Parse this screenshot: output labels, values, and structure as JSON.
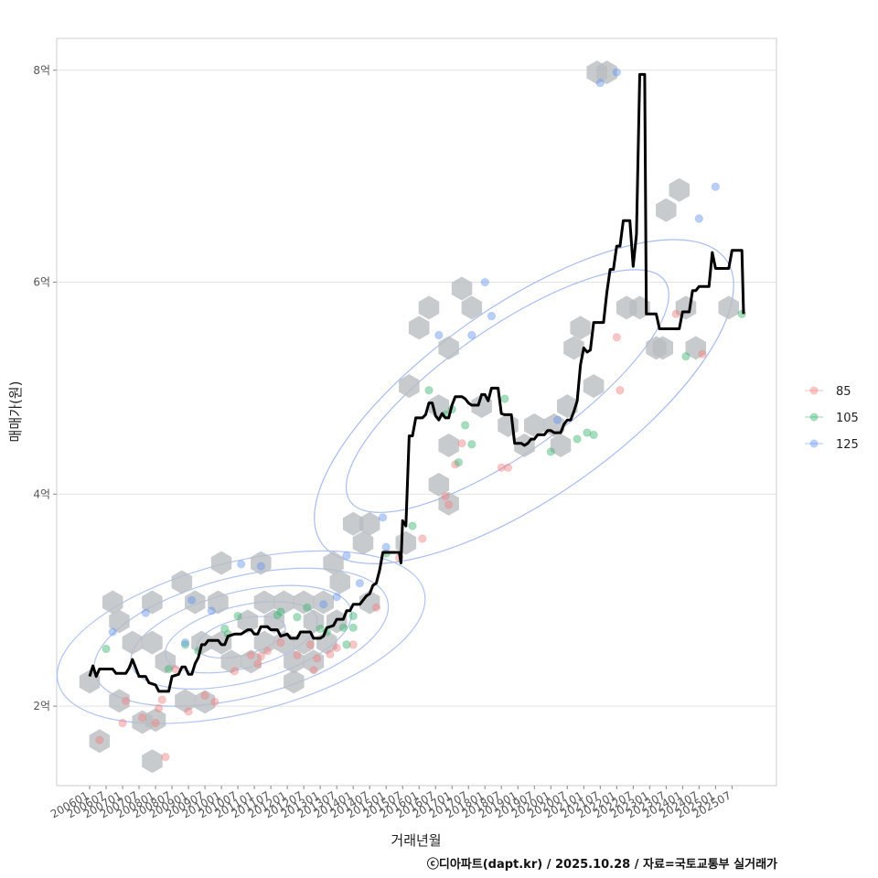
{
  "chart_data": {
    "type": "line",
    "xlabel": "거래년월",
    "ylabel": "매매가(원)",
    "y_ticks": [
      {
        "value": 2,
        "label": "2억"
      },
      {
        "value": 4,
        "label": "4억"
      },
      {
        "value": 6,
        "label": "6억"
      },
      {
        "value": 8,
        "label": "8억"
      }
    ],
    "ylim": [
      1.25,
      8.3
    ],
    "x_ticks": [
      "200601",
      "200607",
      "200701",
      "200707",
      "200801",
      "200807",
      "200901",
      "200907",
      "201001",
      "201007",
      "201101",
      "201107",
      "201201",
      "201207",
      "201301",
      "201307",
      "201401",
      "201407",
      "201501",
      "201507",
      "201601",
      "201607",
      "201701",
      "201707",
      "201801",
      "201807",
      "201901",
      "201907",
      "202001",
      "202007",
      "202101",
      "202107",
      "202201",
      "202207",
      "202301",
      "202307",
      "202401",
      "202407",
      "202501",
      "202507"
    ],
    "xlim": [
      2005.0,
      2026.85
    ],
    "legend": {
      "position": "right",
      "entries": [
        {
          "label": "85",
          "color": "#f08080"
        },
        {
          "label": "105",
          "color": "#3cb371"
        },
        {
          "label": "125",
          "color": "#6495ed"
        }
      ]
    },
    "median_line": {
      "name": "median",
      "color": "#000000",
      "points": [
        [
          2006.0,
          2.28
        ],
        [
          2006.1,
          2.38
        ],
        [
          2006.2,
          2.28
        ],
        [
          2006.3,
          2.35
        ],
        [
          2006.7,
          2.35
        ],
        [
          2006.8,
          2.31
        ],
        [
          2007.1,
          2.31
        ],
        [
          2007.2,
          2.36
        ],
        [
          2007.3,
          2.44
        ],
        [
          2007.5,
          2.28
        ],
        [
          2007.7,
          2.28
        ],
        [
          2007.8,
          2.22
        ],
        [
          2008.0,
          2.2
        ],
        [
          2008.1,
          2.14
        ],
        [
          2008.4,
          2.14
        ],
        [
          2008.5,
          2.28
        ],
        [
          2008.7,
          2.3
        ],
        [
          2008.8,
          2.37
        ],
        [
          2008.9,
          2.37
        ],
        [
          2009.0,
          2.3
        ],
        [
          2009.1,
          2.3
        ],
        [
          2009.2,
          2.4
        ],
        [
          2009.3,
          2.46
        ],
        [
          2009.4,
          2.58
        ],
        [
          2009.5,
          2.58
        ],
        [
          2009.6,
          2.62
        ],
        [
          2009.9,
          2.62
        ],
        [
          2010.0,
          2.58
        ],
        [
          2010.1,
          2.58
        ],
        [
          2010.2,
          2.66
        ],
        [
          2010.4,
          2.68
        ],
        [
          2010.6,
          2.68
        ],
        [
          2010.8,
          2.72
        ],
        [
          2010.9,
          2.72
        ],
        [
          2011.0,
          2.68
        ],
        [
          2011.1,
          2.68
        ],
        [
          2011.2,
          2.75
        ],
        [
          2011.4,
          2.75
        ],
        [
          2011.5,
          2.72
        ],
        [
          2011.7,
          2.72
        ],
        [
          2011.8,
          2.66
        ],
        [
          2012.0,
          2.68
        ],
        [
          2012.1,
          2.64
        ],
        [
          2012.3,
          2.64
        ],
        [
          2012.4,
          2.7
        ],
        [
          2012.7,
          2.7
        ],
        [
          2012.8,
          2.64
        ],
        [
          2013.0,
          2.64
        ],
        [
          2013.1,
          2.66
        ],
        [
          2013.2,
          2.74
        ],
        [
          2013.4,
          2.76
        ],
        [
          2013.5,
          2.82
        ],
        [
          2013.7,
          2.82
        ],
        [
          2013.8,
          2.9
        ],
        [
          2013.9,
          2.9
        ],
        [
          2014.0,
          2.96
        ],
        [
          2014.2,
          2.96
        ],
        [
          2014.3,
          3.0
        ],
        [
          2014.4,
          3.04
        ],
        [
          2014.5,
          3.06
        ],
        [
          2014.6,
          3.14
        ],
        [
          2014.7,
          3.16
        ],
        [
          2014.8,
          3.28
        ],
        [
          2014.9,
          3.45
        ],
        [
          2015.4,
          3.45
        ],
        [
          2015.45,
          3.35
        ],
        [
          2015.5,
          3.75
        ],
        [
          2015.6,
          3.7
        ],
        [
          2015.7,
          4.55
        ],
        [
          2015.8,
          4.55
        ],
        [
          2015.9,
          4.72
        ],
        [
          2016.1,
          4.72
        ],
        [
          2016.2,
          4.75
        ],
        [
          2016.3,
          4.86
        ],
        [
          2016.4,
          4.86
        ],
        [
          2016.5,
          4.74
        ],
        [
          2016.6,
          4.7
        ],
        [
          2016.7,
          4.76
        ],
        [
          2016.8,
          4.72
        ],
        [
          2016.9,
          4.72
        ],
        [
          2017.0,
          4.84
        ],
        [
          2017.1,
          4.92
        ],
        [
          2017.3,
          4.92
        ],
        [
          2017.4,
          4.9
        ],
        [
          2017.5,
          4.86
        ],
        [
          2017.6,
          4.84
        ],
        [
          2017.8,
          4.84
        ],
        [
          2017.9,
          4.94
        ],
        [
          2018.0,
          4.94
        ],
        [
          2018.1,
          4.88
        ],
        [
          2018.2,
          5.0
        ],
        [
          2018.4,
          5.0
        ],
        [
          2018.5,
          4.76
        ],
        [
          2018.6,
          4.75
        ],
        [
          2018.8,
          4.75
        ],
        [
          2018.9,
          4.48
        ],
        [
          2019.1,
          4.48
        ],
        [
          2019.2,
          4.46
        ],
        [
          2019.3,
          4.48
        ],
        [
          2019.4,
          4.52
        ],
        [
          2019.5,
          4.52
        ],
        [
          2019.6,
          4.56
        ],
        [
          2019.8,
          4.56
        ],
        [
          2019.9,
          4.6
        ],
        [
          2020.0,
          4.6
        ],
        [
          2020.1,
          4.58
        ],
        [
          2020.3,
          4.58
        ],
        [
          2020.4,
          4.66
        ],
        [
          2020.5,
          4.7
        ],
        [
          2020.6,
          4.7
        ],
        [
          2020.7,
          4.78
        ],
        [
          2020.8,
          4.88
        ],
        [
          2020.9,
          5.22
        ],
        [
          2021.0,
          5.38
        ],
        [
          2021.1,
          5.34
        ],
        [
          2021.2,
          5.36
        ],
        [
          2021.3,
          5.62
        ],
        [
          2021.6,
          5.62
        ],
        [
          2021.7,
          5.9
        ],
        [
          2021.8,
          6.12
        ],
        [
          2021.9,
          6.12
        ],
        [
          2022.0,
          6.34
        ],
        [
          2022.1,
          6.34
        ],
        [
          2022.2,
          6.58
        ],
        [
          2022.4,
          6.58
        ],
        [
          2022.5,
          6.15
        ],
        [
          2022.6,
          6.45
        ],
        [
          2022.7,
          7.96
        ],
        [
          2022.85,
          7.96
        ],
        [
          2022.9,
          5.7
        ],
        [
          2023.2,
          5.7
        ],
        [
          2023.3,
          5.56
        ],
        [
          2023.9,
          5.56
        ],
        [
          2024.0,
          5.72
        ],
        [
          2024.2,
          5.72
        ],
        [
          2024.3,
          5.92
        ],
        [
          2024.4,
          5.92
        ],
        [
          2024.5,
          5.96
        ],
        [
          2024.8,
          5.96
        ],
        [
          2024.9,
          6.28
        ],
        [
          2025.0,
          6.13
        ],
        [
          2025.4,
          6.13
        ],
        [
          2025.5,
          6.3
        ],
        [
          2025.8,
          6.3
        ],
        [
          2025.85,
          5.7
        ]
      ]
    },
    "hexbins": [
      [
        2006.0,
        2.23
      ],
      [
        2006.3,
        1.67
      ],
      [
        2006.7,
        2.98
      ],
      [
        2006.9,
        2.8
      ],
      [
        2006.9,
        2.05
      ],
      [
        2007.3,
        2.6
      ],
      [
        2007.6,
        1.85
      ],
      [
        2007.9,
        2.98
      ],
      [
        2007.9,
        2.6
      ],
      [
        2008.0,
        1.87
      ],
      [
        2007.9,
        1.48
      ],
      [
        2008.3,
        2.42
      ],
      [
        2008.8,
        3.17
      ],
      [
        2008.9,
        2.05
      ],
      [
        2009.2,
        2.98
      ],
      [
        2009.4,
        2.6
      ],
      [
        2009.5,
        2.04
      ],
      [
        2009.9,
        2.98
      ],
      [
        2010.0,
        2.6
      ],
      [
        2010.0,
        3.35
      ],
      [
        2010.3,
        2.42
      ],
      [
        2010.8,
        2.8
      ],
      [
        2010.9,
        2.42
      ],
      [
        2011.2,
        3.35
      ],
      [
        2011.3,
        2.98
      ],
      [
        2011.3,
        2.6
      ],
      [
        2011.6,
        2.8
      ],
      [
        2011.9,
        2.98
      ],
      [
        2011.9,
        2.6
      ],
      [
        2012.2,
        2.42
      ],
      [
        2012.2,
        2.23
      ],
      [
        2012.5,
        2.98
      ],
      [
        2012.5,
        2.6
      ],
      [
        2012.8,
        2.8
      ],
      [
        2012.8,
        2.42
      ],
      [
        2013.1,
        2.98
      ],
      [
        2013.2,
        2.6
      ],
      [
        2013.4,
        3.35
      ],
      [
        2013.5,
        2.8
      ],
      [
        2013.6,
        3.17
      ],
      [
        2014.0,
        3.72
      ],
      [
        2014.3,
        3.54
      ],
      [
        2014.5,
        3.72
      ],
      [
        2014.5,
        2.98
      ],
      [
        2015.6,
        3.54
      ],
      [
        2015.7,
        5.02
      ],
      [
        2016.0,
        5.57
      ],
      [
        2016.3,
        5.76
      ],
      [
        2016.6,
        4.83
      ],
      [
        2016.6,
        4.09
      ],
      [
        2016.9,
        5.38
      ],
      [
        2016.9,
        4.46
      ],
      [
        2016.9,
        3.91
      ],
      [
        2017.3,
        5.94
      ],
      [
        2017.6,
        5.76
      ],
      [
        2017.9,
        4.83
      ],
      [
        2018.7,
        4.65
      ],
      [
        2019.2,
        4.46
      ],
      [
        2019.5,
        4.65
      ],
      [
        2020.1,
        4.65
      ],
      [
        2020.3,
        4.46
      ],
      [
        2020.5,
        4.83
      ],
      [
        2020.7,
        5.38
      ],
      [
        2020.9,
        5.57
      ],
      [
        2021.3,
        5.02
      ],
      [
        2021.4,
        7.98
      ],
      [
        2021.7,
        7.98
      ],
      [
        2022.3,
        5.76
      ],
      [
        2022.7,
        5.76
      ],
      [
        2023.2,
        5.38
      ],
      [
        2023.4,
        5.38
      ],
      [
        2023.5,
        6.68
      ],
      [
        2023.9,
        6.87
      ],
      [
        2024.1,
        5.76
      ],
      [
        2024.4,
        5.38
      ],
      [
        2025.4,
        5.76
      ]
    ],
    "series": [
      {
        "name": "85",
        "points": [
          [
            2006.3,
            1.68
          ],
          [
            2007.0,
            1.84
          ],
          [
            2007.1,
            2.05
          ],
          [
            2007.6,
            1.89
          ],
          [
            2008.0,
            1.84
          ],
          [
            2008.1,
            1.98
          ],
          [
            2008.2,
            2.06
          ],
          [
            2008.3,
            1.52
          ],
          [
            2008.6,
            2.35
          ],
          [
            2009.0,
            1.95
          ],
          [
            2009.5,
            2.1
          ],
          [
            2009.8,
            2.04
          ],
          [
            2010.4,
            2.33
          ],
          [
            2010.9,
            2.48
          ],
          [
            2011.1,
            2.4
          ],
          [
            2011.2,
            2.47
          ],
          [
            2011.4,
            2.52
          ],
          [
            2011.8,
            2.6
          ],
          [
            2012.3,
            2.48
          ],
          [
            2012.7,
            2.58
          ],
          [
            2012.8,
            2.34
          ],
          [
            2012.9,
            2.45
          ],
          [
            2013.3,
            2.49
          ],
          [
            2013.5,
            2.55
          ],
          [
            2014.0,
            2.58
          ],
          [
            2014.7,
            2.93
          ],
          [
            2015.4,
            3.4
          ],
          [
            2016.1,
            3.58
          ],
          [
            2016.8,
            3.98
          ],
          [
            2016.9,
            3.9
          ],
          [
            2017.1,
            4.28
          ],
          [
            2017.3,
            4.48
          ],
          [
            2018.5,
            4.25
          ],
          [
            2018.7,
            4.25
          ],
          [
            2022.0,
            5.48
          ],
          [
            2022.1,
            4.98
          ],
          [
            2023.8,
            5.7
          ],
          [
            2024.6,
            5.32
          ]
        ]
      },
      {
        "name": "105",
        "points": [
          [
            2006.5,
            2.54
          ],
          [
            2008.4,
            2.35
          ],
          [
            2008.9,
            2.58
          ],
          [
            2009.3,
            2.52
          ],
          [
            2010.1,
            2.73
          ],
          [
            2010.2,
            2.68
          ],
          [
            2010.5,
            2.85
          ],
          [
            2011.7,
            2.86
          ],
          [
            2011.8,
            2.89
          ],
          [
            2012.3,
            2.84
          ],
          [
            2012.6,
            2.93
          ],
          [
            2013.0,
            2.73
          ],
          [
            2013.2,
            2.7
          ],
          [
            2013.7,
            2.74
          ],
          [
            2013.8,
            2.58
          ],
          [
            2014.0,
            2.74
          ],
          [
            2014.0,
            2.85
          ],
          [
            2015.0,
            3.44
          ],
          [
            2015.8,
            3.7
          ],
          [
            2016.3,
            4.98
          ],
          [
            2016.8,
            4.75
          ],
          [
            2017.0,
            4.8
          ],
          [
            2017.2,
            4.3
          ],
          [
            2017.4,
            4.65
          ],
          [
            2017.6,
            4.47
          ],
          [
            2018.6,
            4.9
          ],
          [
            2020.0,
            4.4
          ],
          [
            2020.8,
            4.52
          ],
          [
            2021.1,
            4.58
          ],
          [
            2021.3,
            4.56
          ],
          [
            2024.1,
            5.3
          ],
          [
            2025.8,
            5.7
          ]
        ]
      },
      {
        "name": "125",
        "points": [
          [
            2006.7,
            2.7
          ],
          [
            2007.7,
            2.88
          ],
          [
            2008.9,
            2.6
          ],
          [
            2009.1,
            3.0
          ],
          [
            2009.7,
            2.9
          ],
          [
            2010.6,
            3.34
          ],
          [
            2011.2,
            3.32
          ],
          [
            2013.1,
            2.96
          ],
          [
            2013.5,
            3.03
          ],
          [
            2013.8,
            3.42
          ],
          [
            2014.2,
            3.16
          ],
          [
            2014.9,
            3.78
          ],
          [
            2015.0,
            3.5
          ],
          [
            2016.6,
            5.5
          ],
          [
            2017.6,
            5.5
          ],
          [
            2018.0,
            6.0
          ],
          [
            2018.2,
            5.68
          ],
          [
            2020.2,
            4.7
          ],
          [
            2021.5,
            7.88
          ],
          [
            2022.0,
            7.98
          ],
          [
            2024.5,
            6.6
          ],
          [
            2025.0,
            6.9
          ]
        ]
      }
    ]
  },
  "caption": "ⓒ디아파트(dapt.kr) / 2025.10.28 / 자료=국토교통부 실거래가"
}
